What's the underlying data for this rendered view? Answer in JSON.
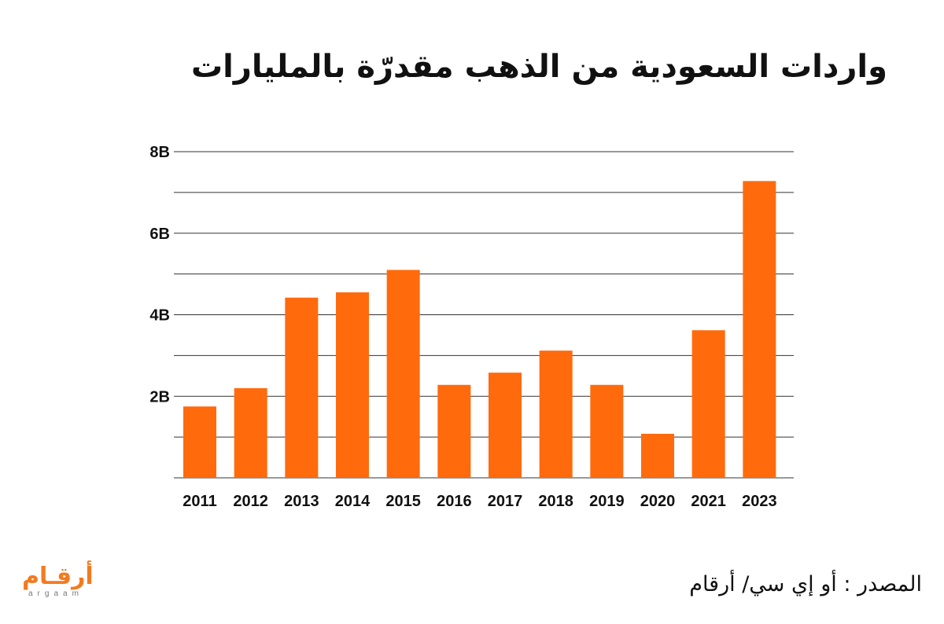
{
  "title": "واردات السعودية من الذهب مقدرّة بالمليارات",
  "source": "المصدر  :  أو إي سي/ أرقام",
  "logo": {
    "arabic": "أرقـام",
    "latin": "argaam"
  },
  "colors": {
    "bar": "#ff6a0d",
    "grid": "#333333",
    "text": "#111111",
    "logo_orange": "#f47a20"
  },
  "chart_data": {
    "type": "bar",
    "title": "واردات السعودية من الذهب مقدرّة بالمليارات",
    "xlabel": "",
    "ylabel": "",
    "categories": [
      "2011",
      "2012",
      "2013",
      "2014",
      "2015",
      "2016",
      "2017",
      "2018",
      "2019",
      "2020",
      "2021",
      "2023"
    ],
    "values": [
      1.75,
      2.2,
      4.42,
      4.55,
      5.1,
      2.28,
      2.58,
      3.12,
      2.28,
      1.08,
      3.62,
      7.28
    ],
    "ylim": [
      0,
      8
    ],
    "yticks": [
      {
        "value": 2,
        "label": "2B"
      },
      {
        "value": 4,
        "label": "4B"
      },
      {
        "value": 6,
        "label": "6B"
      },
      {
        "value": 8,
        "label": "8B"
      }
    ],
    "minor_gridlines": [
      1,
      3,
      5,
      7
    ],
    "grid": true,
    "legend": "none"
  }
}
